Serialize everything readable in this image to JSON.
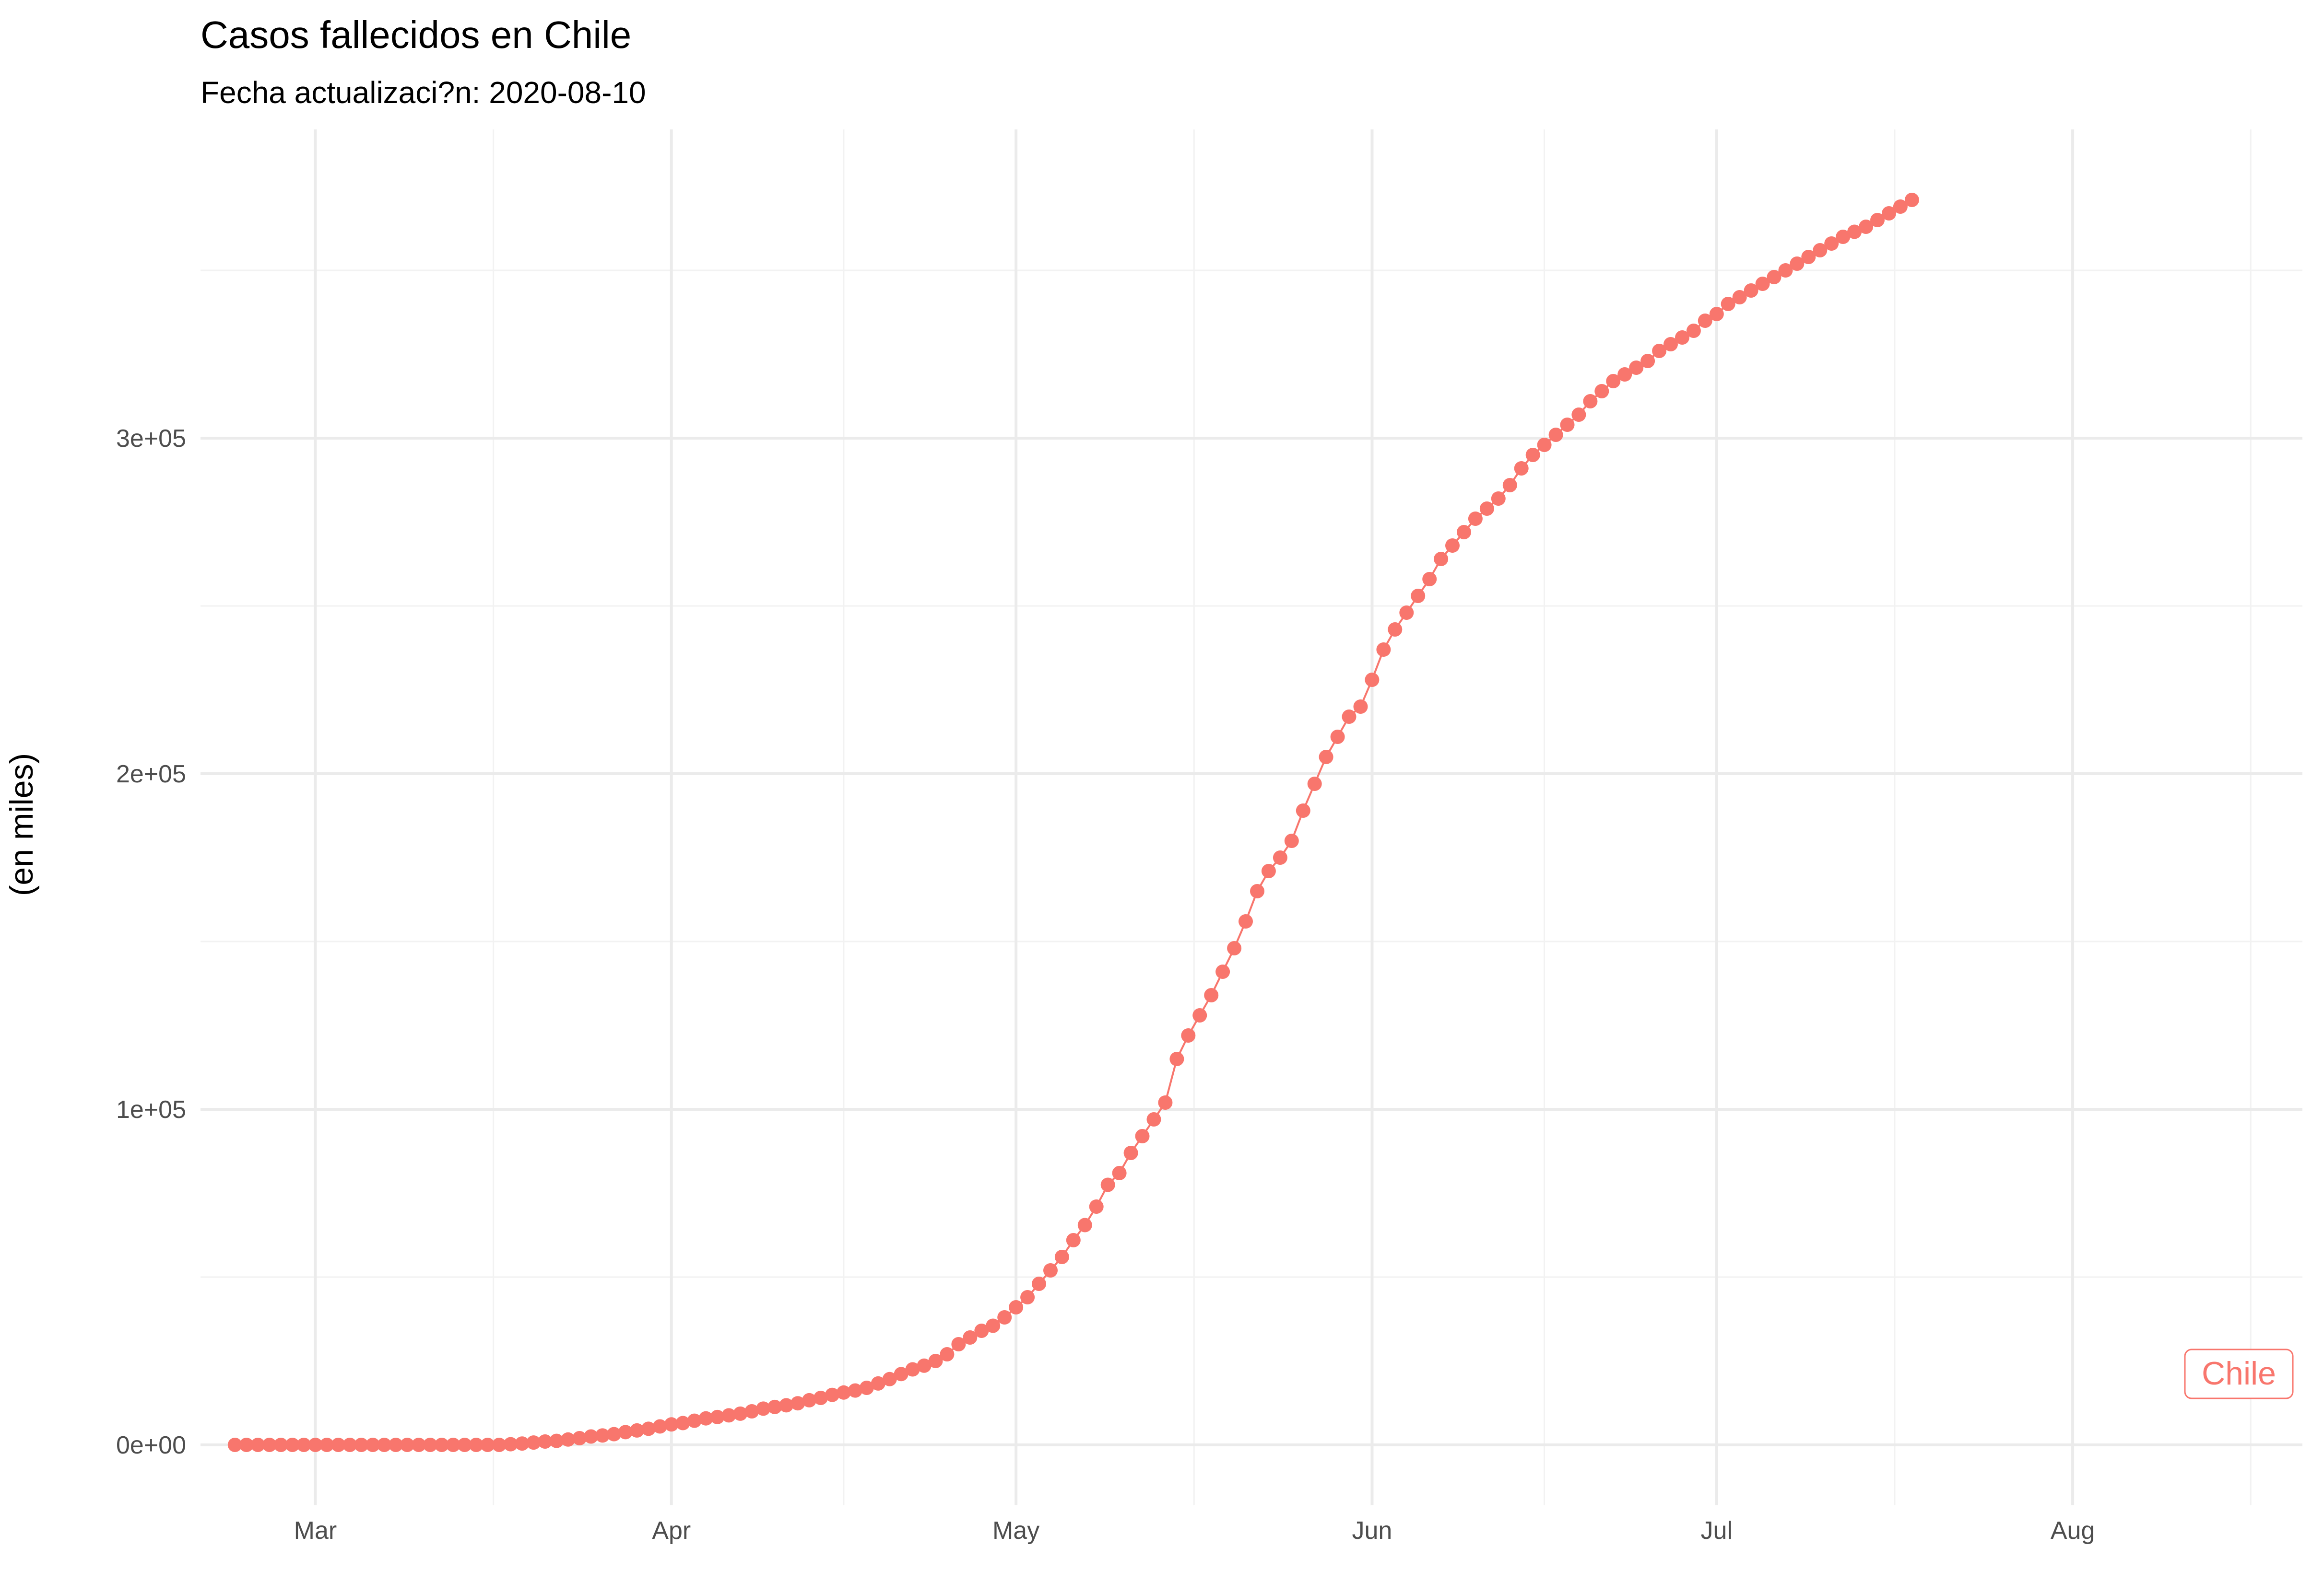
{
  "chart_data": {
    "type": "line",
    "title": "Casos fallecidos en Chile",
    "subtitle": "Fecha actualizaci?n: 2020-08-10",
    "xlabel": "",
    "ylabel": "(en miles)",
    "x_range": [
      "2020-02-20",
      "2020-08-21"
    ],
    "ylim": [
      -18000,
      392000
    ],
    "x_ticks": [
      {
        "date": "2020-03-01",
        "label": "Mar"
      },
      {
        "date": "2020-04-01",
        "label": "Apr"
      },
      {
        "date": "2020-05-01",
        "label": "May"
      },
      {
        "date": "2020-06-01",
        "label": "Jun"
      },
      {
        "date": "2020-07-01",
        "label": "Jul"
      },
      {
        "date": "2020-08-01",
        "label": "Aug"
      }
    ],
    "y_ticks": [
      {
        "value": 0,
        "label": "0e+00"
      },
      {
        "value": 100000,
        "label": "1e+05"
      },
      {
        "value": 200000,
        "label": "2e+05"
      },
      {
        "value": 300000,
        "label": "3e+05"
      }
    ],
    "grid": true,
    "series": [
      {
        "name": "Chile",
        "color": "#F8766D",
        "start_date": "2020-02-23",
        "values": [
          0,
          0,
          0,
          0,
          0,
          0,
          0,
          0,
          0,
          0,
          0,
          0,
          0,
          0,
          0,
          0,
          0,
          0,
          0,
          0,
          0,
          0,
          0,
          0,
          200,
          400,
          700,
          1000,
          1200,
          1600,
          2000,
          2500,
          2800,
          3200,
          3800,
          4300,
          4800,
          5500,
          6100,
          6500,
          7200,
          7900,
          8300,
          8800,
          9300,
          10000,
          10800,
          11300,
          11800,
          12400,
          13300,
          14000,
          14900,
          15600,
          16200,
          17000,
          18300,
          19600,
          21100,
          22500,
          23600,
          25000,
          27000,
          30000,
          32000,
          34000,
          35500,
          38000,
          41000,
          44000,
          48000,
          52000,
          56000,
          61000,
          65500,
          71000,
          77500,
          81000,
          87000,
          92000,
          97000,
          102000,
          115000,
          122000,
          128000,
          134000,
          141000,
          148000,
          156000,
          165000,
          171000,
          175000,
          180000,
          189000,
          197000,
          205000,
          211000,
          217000,
          220000,
          228000,
          237000,
          243000,
          248000,
          253000,
          258000,
          264000,
          268000,
          272000,
          276000,
          279000,
          282000,
          286000,
          291000,
          295000,
          298000,
          301000,
          304000,
          307000,
          311000,
          314000,
          317000,
          319000,
          321000,
          323000,
          326000,
          328000,
          330000,
          332000,
          335000,
          337000,
          340000,
          342000,
          344000,
          346000,
          348000,
          350000,
          352000,
          354000,
          356000,
          358000,
          360000,
          361500,
          363000,
          365000,
          367000,
          369000,
          371000
        ]
      }
    ],
    "end_label": "Chile"
  }
}
